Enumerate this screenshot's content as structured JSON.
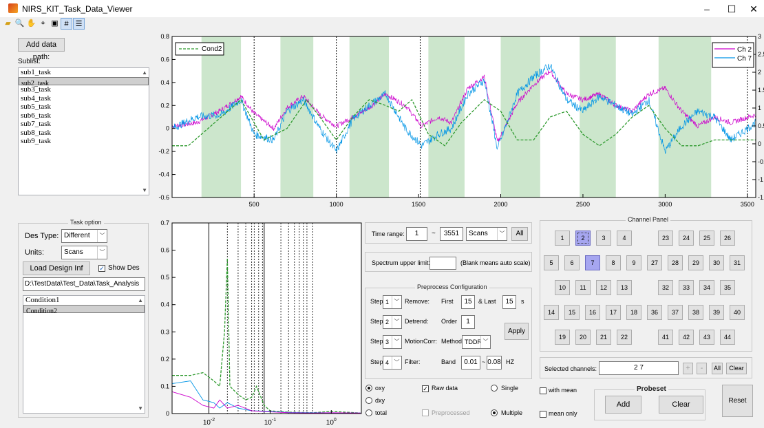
{
  "window": {
    "title": "NIRS_KIT_Task_Data_Viewer",
    "min": "–",
    "max": "☐",
    "close": "✕"
  },
  "toolbar": [
    "open-icon",
    "zoom-icon",
    "pan-icon",
    "datacursor-icon",
    "print-icon",
    "grid-icon",
    "legend-icon"
  ],
  "left": {
    "add_data_path": "Add data path:",
    "sublist_label": "Sublist:",
    "sublist": [
      "sub1_task",
      "sub2_task",
      "sub3_task",
      "sub4_task",
      "sub5_task",
      "sub6_task",
      "sub7_task",
      "sub8_task",
      "sub9_task"
    ],
    "selected_sub": 1
  },
  "task_option": {
    "title": "Task option",
    "des_type_label": "Des Type:",
    "des_type_value": "Different",
    "units_label": "Units:",
    "units_value": "Scans",
    "load_design": "Load Design Inf",
    "show_des": "Show Des",
    "path": "D:\\TestData\\Test_Data\\Task_Analysis",
    "conditions": [
      "Condition1",
      "Condition2"
    ],
    "selected_condition": 1
  },
  "time_range": {
    "label": "Time range:",
    "from": "1",
    "sep": "~",
    "to": "3551",
    "unit": "Scans",
    "all": "All"
  },
  "spectrum": {
    "label": "Spectrum upper limit:",
    "value": "",
    "hint": "(Blank means auto scale)"
  },
  "preprocess": {
    "title": "Preprocess Configuration",
    "rows": [
      {
        "step": "Step",
        "num": "1",
        "name": "Remove:",
        "p1": "First",
        "v1": "15",
        "p2": "& Last",
        "v2": "15",
        "unit": "s"
      },
      {
        "step": "Step",
        "num": "2",
        "name": "Detrend:",
        "p1": "Order",
        "v1": "1"
      },
      {
        "step": "Step",
        "num": "3",
        "name": "MotionCorr:",
        "p1": "Method",
        "v1": "TDDR"
      },
      {
        "step": "Step",
        "num": "4",
        "name": "Filter:",
        "p1": "Band",
        "v1": "0.01",
        "sep": "~",
        "v2": "0.08",
        "unit": "HZ"
      }
    ],
    "apply": "Apply"
  },
  "options": {
    "oxy": "oxy",
    "dxy": "dxy",
    "total": "total",
    "raw": "Raw data",
    "preprocessed": "Preprocessed",
    "single": "Single",
    "multiple": "Multiple",
    "with_mean": "with mean",
    "mean_only": "mean only"
  },
  "channel_panel": {
    "title": "Channel Panel",
    "rows": [
      [
        "1",
        "2",
        "3",
        "4",
        "",
        "23",
        "24",
        "25",
        "26"
      ],
      [
        "5",
        "6",
        "7",
        "8",
        "9",
        "27",
        "28",
        "29",
        "30",
        "31"
      ],
      [
        "10",
        "11",
        "12",
        "13",
        "",
        "32",
        "33",
        "34",
        "35"
      ],
      [
        "14",
        "15",
        "16",
        "17",
        "18",
        "36",
        "37",
        "38",
        "39",
        "40"
      ],
      [
        "19",
        "20",
        "21",
        "22",
        "",
        "41",
        "42",
        "43",
        "44"
      ]
    ],
    "active": [
      "2",
      "7"
    ],
    "focused": "2"
  },
  "selected": {
    "label": "Selected channels:",
    "value": "2 7",
    "plus": "+",
    "minus": "-",
    "all": "All",
    "clear": "Clear"
  },
  "probeset": {
    "title": "Probeset",
    "add": "Add",
    "clear": "Clear"
  },
  "reset": "Reset",
  "colors": {
    "cond": "#2e9a2e",
    "ch2": "#cc00cc",
    "ch7": "#0095e6",
    "block": "#cce6cc"
  },
  "chart_data": [
    {
      "type": "line",
      "x_ticks": [
        "500",
        "1000",
        "1500",
        "2000",
        "2500",
        "3000",
        "3500"
      ],
      "y_ticks": [
        "-0.6",
        "-0.4",
        "-0.2",
        "0",
        "0.2",
        "0.4",
        "0.6",
        "0.8"
      ],
      "y2_ticks": [
        "-1.5",
        "-1",
        "-0.5",
        "0",
        "0.5",
        "1",
        "1.5",
        "2",
        "2.5",
        "3"
      ],
      "xlim": [
        1,
        3551
      ],
      "ylim": [
        -0.6,
        0.8
      ],
      "y2lim": [
        -1.5,
        3
      ],
      "legend_left": "Cond2",
      "legend_right": [
        "Ch 2",
        "Ch 7"
      ],
      "blocks": [
        [
          180,
          420
        ],
        [
          660,
          860
        ],
        [
          1080,
          1320
        ],
        [
          1560,
          1780
        ],
        [
          2000,
          2240
        ],
        [
          2480,
          2700
        ],
        [
          2960,
          3280
        ]
      ],
      "dashed_lines": [
        500,
        1000,
        1510,
        3500
      ],
      "series": [
        {
          "name": "Ch 2",
          "x": [
            1,
            150,
            300,
            420,
            500,
            620,
            700,
            800,
            900,
            1000,
            1100,
            1200,
            1300,
            1420,
            1520,
            1620,
            1700,
            1800,
            1900,
            1980,
            2100,
            2200,
            2300,
            2400,
            2500,
            2600,
            2700,
            2800,
            2900,
            3000,
            3100,
            3200,
            3300,
            3400,
            3551
          ],
          "y": [
            0.02,
            0.05,
            0.16,
            0.28,
            0.13,
            0.0,
            0.18,
            0.28,
            0.12,
            0.02,
            0.1,
            0.18,
            0.3,
            0.2,
            0.02,
            0.1,
            0.05,
            0.35,
            0.45,
            -0.12,
            0.22,
            0.38,
            0.5,
            0.3,
            0.25,
            0.3,
            0.2,
            0.15,
            0.3,
            0.35,
            0.15,
            0.02,
            0.1,
            0.05,
            0.12
          ]
        },
        {
          "name": "Ch 7",
          "x": [
            1,
            150,
            300,
            420,
            500,
            620,
            700,
            800,
            900,
            1000,
            1100,
            1200,
            1300,
            1420,
            1520,
            1620,
            1700,
            1800,
            1900,
            1980,
            2100,
            2200,
            2300,
            2400,
            2500,
            2600,
            2700,
            2800,
            2900,
            3000,
            3100,
            3200,
            3300,
            3400,
            3551
          ],
          "y": [
            0.0,
            0.1,
            0.12,
            0.25,
            -0.05,
            -0.1,
            0.15,
            0.25,
            0.0,
            -0.2,
            0.08,
            0.2,
            0.3,
            0.0,
            -0.15,
            -0.05,
            0.0,
            0.3,
            0.42,
            -0.18,
            0.3,
            0.45,
            0.55,
            0.25,
            0.15,
            0.28,
            0.2,
            0.12,
            0.25,
            -0.2,
            0.02,
            0.15,
            0.1,
            -0.1,
            0.05
          ]
        },
        {
          "name": "Cond2",
          "x": [
            1,
            100,
            300,
            420,
            480,
            560,
            700,
            820,
            900,
            1000,
            1100,
            1200,
            1300,
            1380,
            1460,
            1560,
            1660,
            1760,
            1900,
            2000,
            2100,
            2200,
            2300,
            2400,
            2500,
            2600,
            2700,
            2800,
            2900,
            3000,
            3100,
            3200,
            3300,
            3400,
            3551
          ],
          "y": [
            -0.15,
            -0.15,
            0.1,
            0.25,
            0.1,
            -0.1,
            0.0,
            0.25,
            0.1,
            -0.1,
            0.1,
            0.25,
            0.2,
            0.15,
            0.25,
            -0.05,
            -0.15,
            0.05,
            0.25,
            0.15,
            -0.1,
            -0.1,
            0.1,
            0.15,
            -0.05,
            -0.15,
            -0.05,
            0.1,
            0.2,
            0.0,
            -0.15,
            -0.15,
            -0.1,
            -0.1,
            -0.1
          ]
        }
      ]
    },
    {
      "type": "line",
      "x_scale": "log",
      "x_ticks": [
        "10^-2",
        "10^-1",
        "10^0"
      ],
      "y_ticks": [
        "0",
        "0.1",
        "0.2",
        "0.3",
        "0.4",
        "0.5",
        "0.6",
        "0.7"
      ],
      "xlim": [
        0.0025,
        3.1
      ],
      "ylim": [
        0,
        0.7
      ],
      "solid_lines": [
        0.01,
        0.08
      ],
      "dashed_lines": [
        0.02,
        0.03,
        0.04,
        0.05,
        0.055,
        0.065,
        0.075,
        0.15,
        0.2,
        0.25,
        0.3,
        0.35,
        0.4,
        0.5
      ],
      "series": [
        {
          "name": "Cond2",
          "x": [
            0.0025,
            0.005,
            0.008,
            0.012,
            0.015,
            0.018,
            0.02,
            0.022,
            0.03,
            0.04,
            0.05,
            0.06,
            0.08,
            0.1,
            0.2,
            0.5,
            1,
            3
          ],
          "y": [
            0.14,
            0.14,
            0.15,
            0.12,
            0.1,
            0.3,
            0.57,
            0.1,
            0.07,
            0.05,
            0.06,
            0.1,
            0.03,
            0.01,
            0.005,
            0.003,
            0.008,
            0.002
          ]
        },
        {
          "name": "Ch 7",
          "x": [
            0.0025,
            0.005,
            0.008,
            0.012,
            0.015,
            0.02,
            0.03,
            0.05,
            0.1,
            0.2,
            0.5,
            1,
            3
          ],
          "y": [
            0.11,
            0.12,
            0.05,
            0.04,
            0.02,
            0.04,
            0.02,
            0.01,
            0.008,
            0.004,
            0.003,
            0.003,
            0.002
          ]
        },
        {
          "name": "Ch 2",
          "x": [
            0.0025,
            0.005,
            0.008,
            0.012,
            0.015,
            0.02,
            0.03,
            0.05,
            0.1,
            0.2,
            0.5,
            1,
            3
          ],
          "y": [
            0.08,
            0.06,
            0.03,
            0.02,
            0.05,
            0.02,
            0.03,
            0.01,
            0.006,
            0.003,
            0.002,
            0.003,
            0.002
          ]
        }
      ]
    }
  ]
}
